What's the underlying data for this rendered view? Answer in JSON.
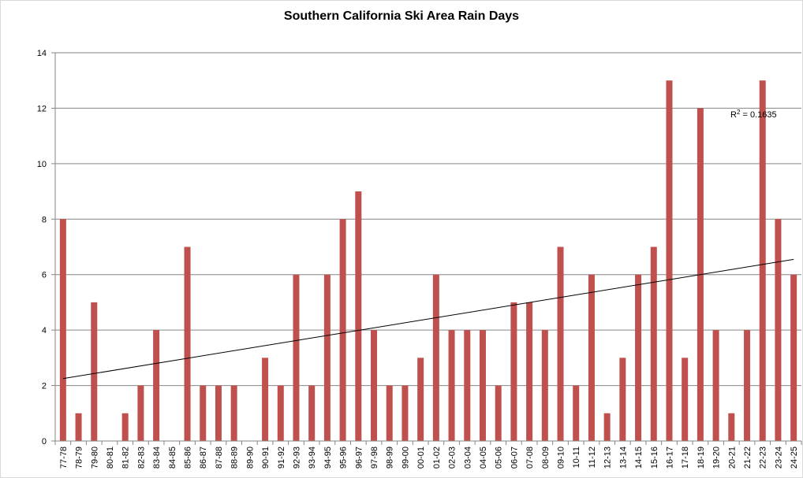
{
  "chart_data": {
    "type": "bar",
    "title": "Southern California Ski Area Rain Days",
    "xlabel": "",
    "ylabel": "",
    "ylim": [
      0,
      14
    ],
    "yticks": [
      0,
      2,
      4,
      6,
      8,
      10,
      12,
      14
    ],
    "grid": true,
    "bar_color": "#c0504d",
    "categories": [
      "77-78",
      "78-79",
      "79-80",
      "80-81",
      "81-82",
      "82-83",
      "83-84",
      "84-85",
      "85-86",
      "86-87",
      "87-88",
      "88-89",
      "89-90",
      "90-91",
      "91-92",
      "92-93",
      "93-94",
      "94-95",
      "95-96",
      "96-97",
      "97-98",
      "98-99",
      "99-00",
      "00-01",
      "01-02",
      "02-03",
      "03-04",
      "04-05",
      "05-06",
      "06-07",
      "07-08",
      "08-09",
      "09-10",
      "10-11",
      "11-12",
      "12-13",
      "13-14",
      "14-15",
      "15-16",
      "16-17",
      "17-18",
      "18-19",
      "19-20",
      "20-21",
      "21-22",
      "22-23",
      "23-24",
      "24-25"
    ],
    "values": [
      8,
      1,
      5,
      0,
      1,
      2,
      4,
      0,
      7,
      2,
      2,
      2,
      0,
      3,
      2,
      6,
      2,
      6,
      8,
      9,
      4,
      2,
      2,
      3,
      6,
      4,
      4,
      4,
      2,
      5,
      5,
      4,
      7,
      2,
      6,
      1,
      3,
      6,
      7,
      13,
      3,
      12,
      4,
      1,
      4,
      13,
      8,
      6
    ],
    "trendline": {
      "type": "linear",
      "start": 2.25,
      "end": 6.55,
      "label_base": "R",
      "label_sup": "2",
      "label_value": " = 0.1635"
    }
  }
}
